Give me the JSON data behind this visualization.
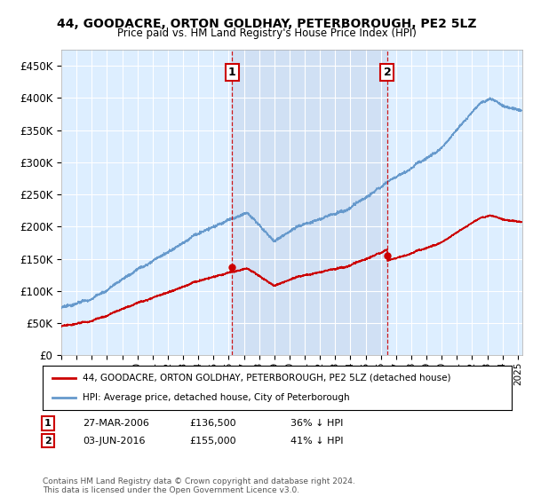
{
  "title": "44, GOODACRE, ORTON GOLDHAY, PETERBOROUGH, PE2 5LZ",
  "subtitle": "Price paid vs. HM Land Registry's House Price Index (HPI)",
  "ylabel_ticks": [
    "£0",
    "£50K",
    "£100K",
    "£150K",
    "£200K",
    "£250K",
    "£300K",
    "£350K",
    "£400K",
    "£450K"
  ],
  "ytick_values": [
    0,
    50000,
    100000,
    150000,
    200000,
    250000,
    300000,
    350000,
    400000,
    450000
  ],
  "ylim": [
    0,
    475000
  ],
  "xlim_start": 1995.0,
  "xlim_end": 2025.3,
  "background_color": "#ddeeff",
  "grid_color": "#ffffff",
  "hpi_color": "#6699cc",
  "price_color": "#cc0000",
  "sale1_x": 2006.23,
  "sale1_y": 136500,
  "sale2_x": 2016.42,
  "sale2_y": 155000,
  "sale1_label": "27-MAR-2006",
  "sale1_price": "£136,500",
  "sale1_hpi": "36% ↓ HPI",
  "sale2_label": "03-JUN-2016",
  "sale2_price": "£155,000",
  "sale2_hpi": "41% ↓ HPI",
  "legend_line1": "44, GOODACRE, ORTON GOLDHAY, PETERBOROUGH, PE2 5LZ (detached house)",
  "legend_line2": "HPI: Average price, detached house, City of Peterborough",
  "footnote": "Contains HM Land Registry data © Crown copyright and database right 2024.\nThis data is licensed under the Open Government Licence v3.0."
}
